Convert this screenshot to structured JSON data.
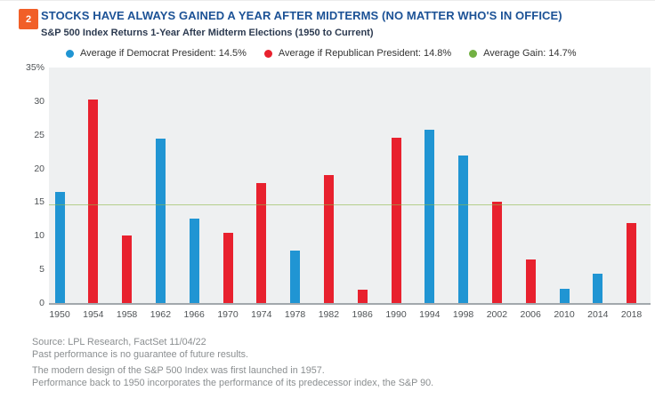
{
  "badge": "2",
  "header": {
    "title": "STOCKS HAVE ALWAYS GAINED A YEAR AFTER MIDTERMS (NO MATTER WHO'S IN OFFICE)",
    "subtitle": "S&P 500 Index Returns 1-Year After Midterm Elections (1950 to Current)"
  },
  "legend": [
    {
      "label": "Average if Democrat President: 14.5%",
      "color": "#2095d3"
    },
    {
      "label": "Average if Republican President: 14.8%",
      "color": "#e8212e"
    },
    {
      "label": "Average Gain: 14.7%",
      "color": "#72b043"
    }
  ],
  "chart_data": {
    "type": "bar",
    "title": "S&P 500 Index Returns 1-Year After Midterm Elections (1950 to Current)",
    "categories": [
      "1950",
      "1954",
      "1958",
      "1962",
      "1966",
      "1970",
      "1974",
      "1978",
      "1982",
      "1986",
      "1990",
      "1994",
      "1998",
      "2002",
      "2006",
      "2010",
      "2014",
      "2018"
    ],
    "values": [
      16.5,
      30.3,
      10.0,
      24.5,
      12.5,
      10.5,
      17.8,
      7.8,
      19.0,
      2.0,
      24.6,
      25.8,
      21.9,
      15.1,
      6.5,
      2.1,
      4.4,
      11.9
    ],
    "party": [
      "D",
      "R",
      "R",
      "D",
      "D",
      "R",
      "R",
      "D",
      "R",
      "R",
      "R",
      "D",
      "D",
      "R",
      "R",
      "D",
      "D",
      "R"
    ],
    "average_line": 14.7,
    "averages": {
      "democrat": 14.5,
      "republican": 14.8,
      "overall": 14.7
    },
    "ylim": [
      0,
      35
    ],
    "yticks": [
      0,
      5,
      10,
      15,
      20,
      25,
      30,
      35
    ],
    "ytick_labels": [
      "0",
      "5",
      "10",
      "15",
      "20",
      "25",
      "30",
      "35%"
    ],
    "grid": false,
    "legend_position": "top",
    "colors": {
      "democrat": "#2095d3",
      "republican": "#e8212e",
      "average_line": "#8db949",
      "plot_background": "#eef0f1"
    }
  },
  "footer": {
    "lines": [
      "Source: LPL Research, FactSet  11/04/22",
      "Past performance is no guarantee of future results.",
      "The modern design of the S&P 500 Index was first launched in 1957.",
      "Performance back to 1950 incorporates the performance of its predecessor index, the S&P 90."
    ]
  }
}
